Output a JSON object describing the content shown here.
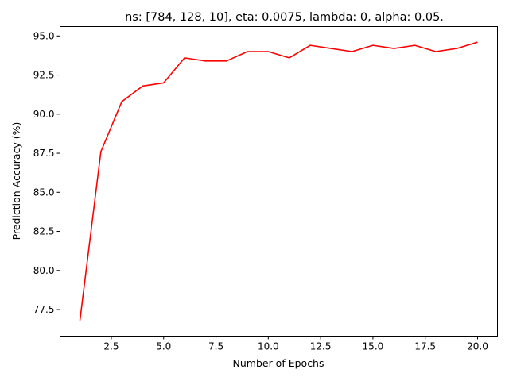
{
  "chart_data": {
    "type": "line",
    "title": "ns: [784, 128, 10], eta: 0.0075, lambda: 0, alpha: 0.05.",
    "xlabel": "Number of Epochs",
    "ylabel": "Prediction Accuracy (%)",
    "xlim": [
      0.05,
      20.95
    ],
    "ylim": [
      75.8,
      95.6
    ],
    "xticks": [
      2.5,
      5.0,
      7.5,
      10.0,
      12.5,
      15.0,
      17.5,
      20.0
    ],
    "xtick_labels": [
      "2.5",
      "5.0",
      "7.5",
      "10.0",
      "12.5",
      "15.0",
      "17.5",
      "20.0"
    ],
    "yticks": [
      77.5,
      80.0,
      82.5,
      85.0,
      87.5,
      90.0,
      92.5,
      95.0
    ],
    "ytick_labels": [
      "77.5",
      "80.0",
      "82.5",
      "85.0",
      "87.5",
      "90.0",
      "92.5",
      "95.0"
    ],
    "grid": false,
    "series": [
      {
        "color": "#ff0000",
        "x": [
          1,
          2,
          3,
          4,
          5,
          6,
          7,
          8,
          9,
          10,
          11,
          12,
          13,
          14,
          15,
          16,
          17,
          18,
          19,
          20
        ],
        "y": [
          76.8,
          87.6,
          90.8,
          91.8,
          92.0,
          93.6,
          93.4,
          93.4,
          94.0,
          94.0,
          93.6,
          94.4,
          94.2,
          94.0,
          94.4,
          94.2,
          94.4,
          94.0,
          94.2,
          94.6
        ]
      }
    ]
  }
}
